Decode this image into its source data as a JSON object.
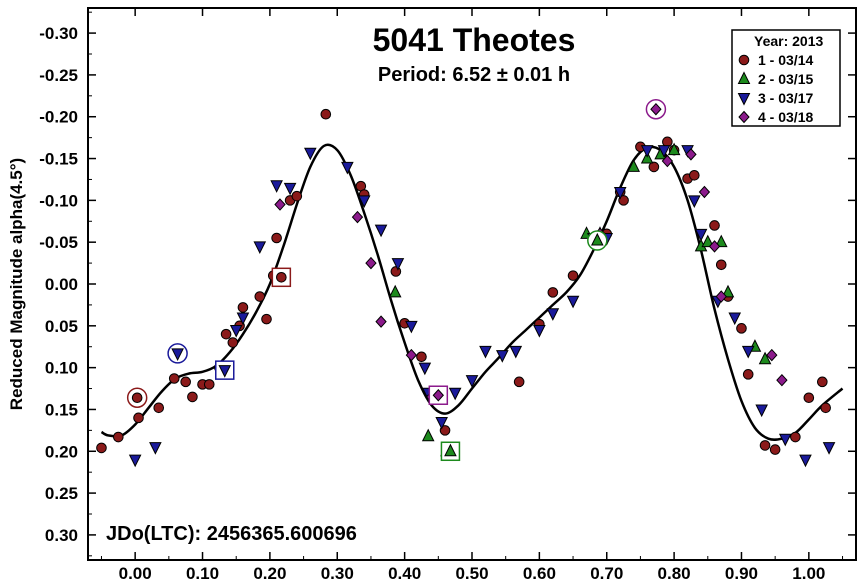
{
  "chart_data": {
    "type": "scatter",
    "title": "5041 Theotes",
    "subtitle": "Period: 6.52 ± 0.01 h",
    "ylabel": "Reduced Magnitude alpha(4.5°)",
    "annotation": "JDo(LTC): 2456365.600696",
    "xlim": [
      -0.07,
      1.07
    ],
    "ylim": [
      0.33,
      -0.33
    ],
    "y_inverted": true,
    "grid": false,
    "legend_position": "top-right",
    "legend_title": "Year: 2013",
    "x_ticks": [
      0.0,
      0.1,
      0.2,
      0.3,
      0.4,
      0.5,
      0.6,
      0.7,
      0.8,
      0.9,
      1.0
    ],
    "x_tick_labels": [
      "0.00",
      "0.10",
      "0.20",
      "0.30",
      "0.40",
      "0.50",
      "0.60",
      "0.70",
      "0.80",
      "0.90",
      "1.00"
    ],
    "y_ticks": [
      -0.3,
      -0.25,
      -0.2,
      -0.15,
      -0.1,
      -0.05,
      0.0,
      0.05,
      0.1,
      0.15,
      0.2,
      0.25,
      0.3
    ],
    "y_tick_labels": [
      "-0.30",
      "-0.25",
      "-0.20",
      "-0.15",
      "-0.10",
      "-0.05",
      "0.00",
      "0.05",
      "0.10",
      "0.15",
      "0.20",
      "0.25",
      "0.30"
    ],
    "series": [
      {
        "name": "1 - 03/14",
        "marker": "circle",
        "color": "#8b1a1a",
        "points": [
          [
            -0.05,
            0.196
          ],
          [
            -0.025,
            0.183
          ],
          [
            0.005,
            0.16
          ],
          [
            0.035,
            0.148
          ],
          [
            0.058,
            0.113
          ],
          [
            0.075,
            0.117
          ],
          [
            0.085,
            0.135
          ],
          [
            0.1,
            0.12
          ],
          [
            0.11,
            0.12
          ],
          [
            0.125,
            0.1
          ],
          [
            0.135,
            0.06
          ],
          [
            0.145,
            0.07
          ],
          [
            0.155,
            0.05
          ],
          [
            0.16,
            0.028
          ],
          [
            0.185,
            0.015
          ],
          [
            0.195,
            0.042
          ],
          [
            0.205,
            -0.01
          ],
          [
            0.21,
            -0.055
          ],
          [
            0.23,
            -0.1
          ],
          [
            0.24,
            -0.105
          ],
          [
            0.283,
            -0.203
          ],
          [
            0.335,
            -0.117
          ],
          [
            0.34,
            -0.107
          ],
          [
            0.387,
            -0.015
          ],
          [
            0.4,
            0.047
          ],
          [
            0.425,
            0.087
          ],
          [
            0.46,
            0.175
          ],
          [
            0.6,
            0.048
          ],
          [
            0.57,
            0.117
          ],
          [
            0.62,
            0.01
          ],
          [
            0.65,
            -0.01
          ],
          [
            0.68,
            -0.053
          ],
          [
            0.7,
            -0.06
          ],
          [
            0.72,
            -0.11
          ],
          [
            0.725,
            -0.1
          ],
          [
            0.75,
            -0.164
          ],
          [
            0.77,
            -0.14
          ],
          [
            0.79,
            -0.17
          ],
          [
            0.8,
            -0.16
          ],
          [
            0.82,
            -0.126
          ],
          [
            0.83,
            -0.13
          ],
          [
            0.86,
            -0.07
          ],
          [
            0.87,
            -0.023
          ],
          [
            0.88,
            0.015
          ],
          [
            0.9,
            0.053
          ],
          [
            0.91,
            0.108
          ],
          [
            0.935,
            0.193
          ],
          [
            0.95,
            0.198
          ],
          [
            0.98,
            0.183
          ],
          [
            1.0,
            0.136
          ],
          [
            1.02,
            0.117
          ],
          [
            1.025,
            0.148
          ]
        ]
      },
      {
        "name": "2 - 03/15",
        "marker": "triangle-up",
        "color": "#1d8a1d",
        "points": [
          [
            0.435,
            0.182
          ],
          [
            0.462,
            0.2
          ],
          [
            0.386,
            0.01
          ],
          [
            0.67,
            -0.06
          ],
          [
            0.69,
            -0.06
          ],
          [
            0.74,
            -0.14
          ],
          [
            0.76,
            -0.15
          ],
          [
            0.78,
            -0.155
          ],
          [
            0.8,
            -0.16
          ],
          [
            0.84,
            -0.045
          ],
          [
            0.85,
            -0.05
          ],
          [
            0.87,
            -0.05
          ],
          [
            0.88,
            0.01
          ],
          [
            0.92,
            0.075
          ],
          [
            0.935,
            0.09
          ]
        ]
      },
      {
        "name": "3 - 03/17",
        "marker": "triangle-down",
        "color": "#1a1a9a",
        "points": [
          [
            0.0,
            0.21
          ],
          [
            0.03,
            0.195
          ],
          [
            0.06,
            0.085
          ],
          [
            0.13,
            0.105
          ],
          [
            0.15,
            0.055
          ],
          [
            0.16,
            0.04
          ],
          [
            0.185,
            -0.045
          ],
          [
            0.21,
            -0.118
          ],
          [
            0.23,
            -0.115
          ],
          [
            0.26,
            -0.157
          ],
          [
            0.315,
            -0.14
          ],
          [
            0.34,
            -0.1
          ],
          [
            0.365,
            -0.065
          ],
          [
            0.39,
            -0.025
          ],
          [
            0.41,
            0.05
          ],
          [
            0.43,
            0.1
          ],
          [
            0.435,
            0.13
          ],
          [
            0.455,
            0.165
          ],
          [
            0.475,
            0.13
          ],
          [
            0.5,
            0.115
          ],
          [
            0.52,
            0.08
          ],
          [
            0.545,
            0.085
          ],
          [
            0.565,
            0.08
          ],
          [
            0.6,
            0.055
          ],
          [
            0.62,
            0.035
          ],
          [
            0.65,
            0.02
          ],
          [
            0.68,
            -0.055
          ],
          [
            0.7,
            -0.055
          ],
          [
            0.72,
            -0.11
          ],
          [
            0.76,
            -0.16
          ],
          [
            0.785,
            -0.16
          ],
          [
            0.82,
            -0.16
          ],
          [
            0.83,
            -0.1
          ],
          [
            0.84,
            -0.06
          ],
          [
            0.865,
            0.02
          ],
          [
            0.89,
            0.04
          ],
          [
            0.91,
            0.08
          ],
          [
            0.93,
            0.15
          ],
          [
            0.965,
            0.185
          ],
          [
            0.995,
            0.21
          ],
          [
            1.03,
            0.195
          ]
        ]
      },
      {
        "name": "4 - 03/18",
        "marker": "diamond",
        "color": "#8b1a8b",
        "points": [
          [
            0.215,
            -0.095
          ],
          [
            0.33,
            -0.08
          ],
          [
            0.35,
            -0.025
          ],
          [
            0.365,
            0.045
          ],
          [
            0.41,
            0.085
          ],
          [
            0.44,
            0.135
          ],
          [
            0.448,
            0.135
          ],
          [
            0.69,
            -0.06
          ],
          [
            0.77,
            -0.21
          ],
          [
            0.79,
            -0.147
          ],
          [
            0.825,
            -0.155
          ],
          [
            0.845,
            -0.11
          ],
          [
            0.86,
            -0.045
          ],
          [
            0.87,
            0.015
          ],
          [
            0.945,
            0.085
          ],
          [
            0.96,
            0.115
          ]
        ]
      }
    ],
    "highlighted_points": [
      {
        "series": "1 - 03/14",
        "frame": "circle",
        "x": 0.003,
        "y": 0.136
      },
      {
        "series": "3 - 03/17",
        "frame": "circle",
        "x": 0.063,
        "y": 0.083
      },
      {
        "series": "3 - 03/17",
        "frame": "square",
        "x": 0.133,
        "y": 0.103
      },
      {
        "series": "1 - 03/14",
        "frame": "square",
        "x": 0.217,
        "y": -0.008
      },
      {
        "series": "4 - 03/18",
        "frame": "square",
        "x": 0.45,
        "y": 0.133
      },
      {
        "series": "2 - 03/15",
        "frame": "square",
        "x": 0.468,
        "y": 0.2
      },
      {
        "series": "2 - 03/15",
        "frame": "circle",
        "x": 0.686,
        "y": -0.052
      },
      {
        "series": "4 - 03/18",
        "frame": "circle",
        "x": 0.773,
        "y": -0.209
      }
    ],
    "fit_curve": {
      "color": "#000000",
      "x": [
        -0.05,
        -0.04,
        -0.02,
        0.0,
        0.02,
        0.04,
        0.06,
        0.08,
        0.1,
        0.12,
        0.14,
        0.16,
        0.18,
        0.2,
        0.22,
        0.24,
        0.26,
        0.28,
        0.3,
        0.32,
        0.34,
        0.36,
        0.38,
        0.4,
        0.42,
        0.44,
        0.46,
        0.48,
        0.5,
        0.52,
        0.54,
        0.56,
        0.58,
        0.6,
        0.62,
        0.64,
        0.66,
        0.68,
        0.7,
        0.72,
        0.74,
        0.76,
        0.78,
        0.8,
        0.82,
        0.84,
        0.86,
        0.88,
        0.9,
        0.92,
        0.94,
        0.96,
        0.98,
        1.0,
        1.02,
        1.05
      ],
      "y": [
        0.177,
        0.181,
        0.181,
        0.168,
        0.148,
        0.128,
        0.113,
        0.107,
        0.105,
        0.098,
        0.082,
        0.06,
        0.033,
        0.0,
        -0.045,
        -0.095,
        -0.14,
        -0.165,
        -0.16,
        -0.13,
        -0.085,
        -0.035,
        0.02,
        0.07,
        0.115,
        0.145,
        0.155,
        0.145,
        0.125,
        0.105,
        0.088,
        0.07,
        0.055,
        0.04,
        0.025,
        0.01,
        -0.01,
        -0.04,
        -0.075,
        -0.115,
        -0.148,
        -0.163,
        -0.16,
        -0.14,
        -0.1,
        -0.04,
        0.03,
        0.09,
        0.14,
        0.172,
        0.185,
        0.185,
        0.178,
        0.162,
        0.145,
        0.125
      ]
    }
  }
}
